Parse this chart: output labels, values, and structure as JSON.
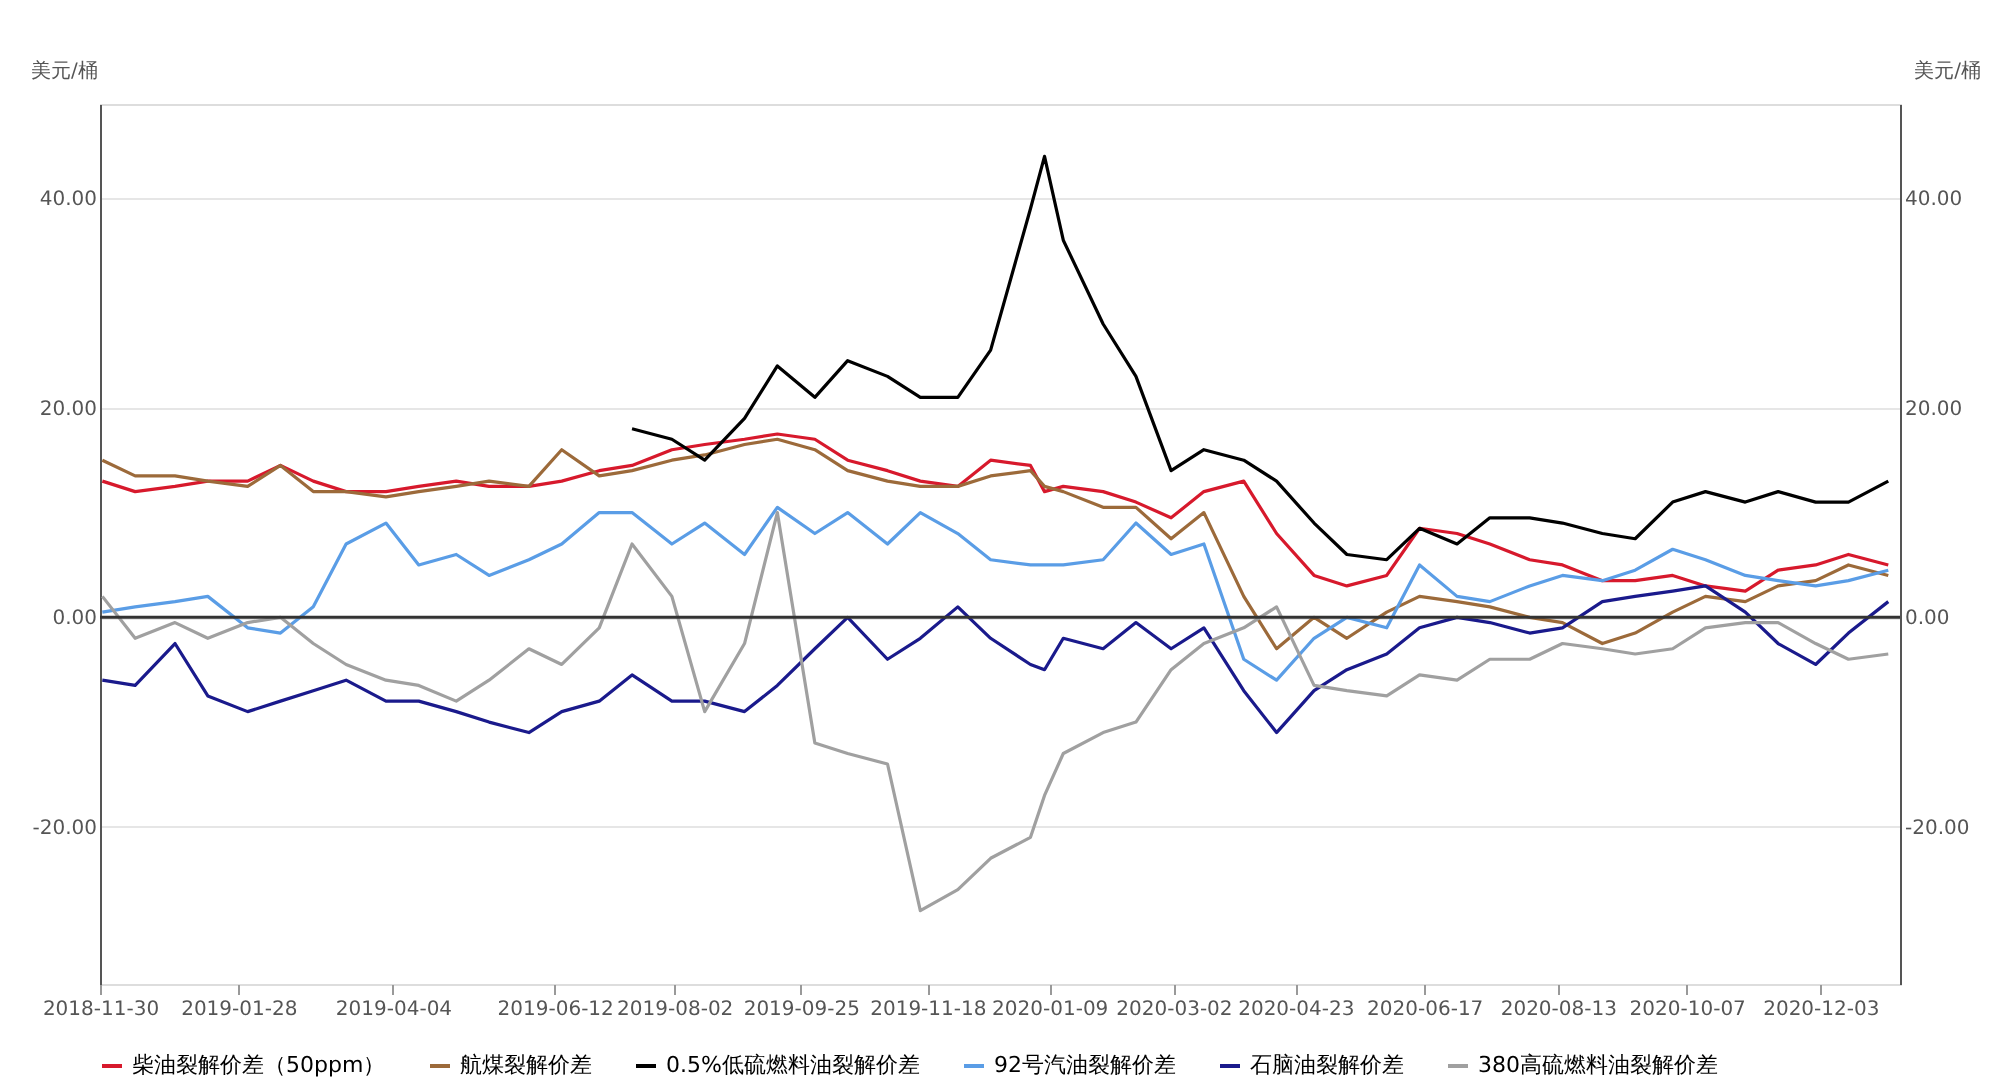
{
  "chart_data": {
    "type": "line",
    "ylabel": "美元/桶",
    "y2label": "美元/桶",
    "x": [
      "2018-12-01",
      "2018-12-15",
      "2019-01-01",
      "2019-01-15",
      "2019-02-01",
      "2019-02-15",
      "2019-03-01",
      "2019-03-15",
      "2019-04-01",
      "2019-04-15",
      "2019-05-01",
      "2019-05-15",
      "2019-06-01",
      "2019-06-15",
      "2019-07-01",
      "2019-07-15",
      "2019-08-01",
      "2019-08-15",
      "2019-09-01",
      "2019-09-15",
      "2019-10-01",
      "2019-10-15",
      "2019-11-01",
      "2019-11-15",
      "2019-12-01",
      "2019-12-15",
      "2020-01-01",
      "2020-01-07",
      "2020-01-15",
      "2020-02-01",
      "2020-02-15",
      "2020-03-01",
      "2020-03-15",
      "2020-04-01",
      "2020-04-15",
      "2020-05-01",
      "2020-05-15",
      "2020-06-01",
      "2020-06-15",
      "2020-07-01",
      "2020-07-15",
      "2020-08-01",
      "2020-08-15",
      "2020-09-01",
      "2020-09-15",
      "2020-10-01",
      "2020-10-15",
      "2020-11-01",
      "2020-11-15",
      "2020-12-01",
      "2020-12-15",
      "2021-01-01"
    ],
    "series": [
      {
        "name": "柴油裂解价差（50ppm）",
        "color": "#d7192c",
        "values": [
          13,
          12,
          12.5,
          13,
          13,
          14.5,
          13,
          12,
          12,
          12.5,
          13,
          12.5,
          12.5,
          13,
          14,
          14.5,
          16,
          16.5,
          17,
          17.5,
          17,
          15,
          14,
          13,
          12.5,
          15,
          14.5,
          12,
          12.5,
          12,
          11,
          9.5,
          12,
          13,
          8,
          4,
          3,
          4,
          8.5,
          8,
          7,
          5.5,
          5,
          3.5,
          3.5,
          4,
          3,
          2.5,
          4.5,
          5,
          6,
          5
        ]
      },
      {
        "name": "航煤裂解价差",
        "color": "#9c6a3a",
        "values": [
          15,
          13.5,
          13.5,
          13,
          12.5,
          14.5,
          12,
          12,
          11.5,
          12,
          12.5,
          13,
          12.5,
          16,
          13.5,
          14,
          15,
          15.5,
          16.5,
          17,
          16,
          14,
          13,
          12.5,
          12.5,
          13.5,
          14,
          12.5,
          12,
          10.5,
          10.5,
          7.5,
          10,
          2,
          -3,
          0,
          -2,
          0.5,
          2,
          1.5,
          1,
          0,
          -0.5,
          -2.5,
          -1.5,
          0.5,
          2,
          1.5,
          3,
          3.5,
          5,
          4
        ]
      },
      {
        "name": "0.5%低硫燃料油裂解价差",
        "color": "#000000",
        "values": [
          null,
          null,
          null,
          null,
          null,
          null,
          null,
          null,
          null,
          null,
          null,
          null,
          null,
          null,
          null,
          18,
          17,
          15,
          19,
          24,
          21,
          24.5,
          23,
          21,
          21,
          25.5,
          39,
          44,
          36,
          28,
          23,
          14,
          16,
          15,
          13,
          9,
          6,
          5.5,
          8.5,
          7,
          9.5,
          9.5,
          9,
          8,
          7.5,
          11,
          12,
          11,
          12,
          11,
          11,
          13
        ]
      },
      {
        "name": "92号汽油裂解价差",
        "color": "#5a9de6",
        "values": [
          0.5,
          1,
          1.5,
          2,
          -1,
          -1.5,
          1,
          7,
          9,
          5,
          6,
          4,
          5.5,
          7,
          10,
          10,
          7,
          9,
          6,
          10.5,
          8,
          10,
          7,
          10,
          8,
          5.5,
          5,
          5,
          5,
          5.5,
          9,
          6,
          7,
          -4,
          -6,
          -2,
          0,
          -1,
          5,
          2,
          1.5,
          3,
          4,
          3.5,
          4.5,
          6.5,
          5.5,
          4,
          3.5,
          3,
          3.5,
          4.5
        ]
      },
      {
        "name": "石脑油裂解价差",
        "color": "#1a1a8c",
        "values": [
          -6,
          -6.5,
          -2.5,
          -7.5,
          -9,
          -8,
          -7,
          -6,
          -8,
          -8,
          -9,
          -10,
          -11,
          -9,
          -8,
          -5.5,
          -8,
          -8,
          -9,
          -6.5,
          -3,
          0,
          -4,
          -2,
          1,
          -2,
          -4.5,
          -5,
          -2,
          -3,
          -0.5,
          -3,
          -1,
          -7,
          -11,
          -7,
          -5,
          -3.5,
          -1,
          0,
          -0.5,
          -1.5,
          -1,
          1.5,
          2,
          2.5,
          3,
          0.5,
          -2.5,
          -4.5,
          -1.5,
          1.5
        ]
      },
      {
        "name": "380高硫燃料油裂解价差",
        "color": "#a0a0a0",
        "values": [
          2,
          -2,
          -0.5,
          -2,
          -0.5,
          0,
          -2.5,
          -4.5,
          -6,
          -6.5,
          -8,
          -6,
          -3,
          -4.5,
          -1,
          7,
          2,
          -9,
          -2.5,
          10,
          -12,
          -13,
          -14,
          -28,
          -26,
          -23,
          -21,
          -17,
          -13,
          -11,
          -10,
          -5,
          -2.5,
          -1,
          1,
          -6.5,
          -7,
          -7.5,
          -5.5,
          -6,
          -4,
          -4,
          -2.5,
          -3,
          -3.5,
          -3,
          -1,
          -0.5,
          -0.5,
          -2.5,
          -4,
          -3.5
        ]
      }
    ],
    "xlim": [
      "2018-11-30",
      "2021-01-06"
    ],
    "xticks": [
      "2018-11-30",
      "2019-01-28",
      "2019-04-04",
      "2019-06-12",
      "2019-08-02",
      "2019-09-25",
      "2019-11-18",
      "2020-01-09",
      "2020-03-02",
      "2020-04-23",
      "2020-06-17",
      "2020-08-13",
      "2020-10-07",
      "2020-12-03"
    ],
    "ylim": [
      -35,
      49
    ],
    "yticks": [
      {
        "value": -20,
        "label": "-20.00"
      },
      {
        "value": 0,
        "label": "0.00"
      },
      {
        "value": 20,
        "label": "20.00"
      },
      {
        "value": 40,
        "label": "40.00"
      }
    ],
    "y2lim": [
      -35,
      49
    ],
    "y2ticks": [
      {
        "value": -20,
        "label": "-20.00"
      },
      {
        "value": 0,
        "label": "0.00"
      },
      {
        "value": 20,
        "label": "20.00"
      },
      {
        "value": 40,
        "label": "40.00"
      }
    ],
    "ref_lines": [
      {
        "axis": "y",
        "value": 0,
        "color": "#333333"
      }
    ],
    "grid": "y",
    "legend": "bottom",
    "marker": "none",
    "line_style": "solid"
  }
}
